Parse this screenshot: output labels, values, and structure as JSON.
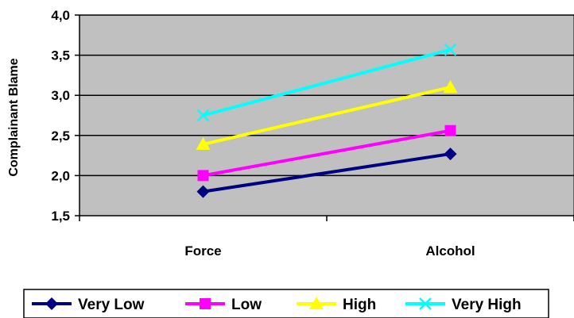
{
  "chart_data": {
    "type": "line",
    "categories": [
      "Force",
      "Alcohol"
    ],
    "ylabel": "Complainant Blame",
    "xlabel": "",
    "ylim": [
      1.5,
      4.0
    ],
    "yticks": [
      "1,5",
      "2,0",
      "2,5",
      "3,0",
      "3,5",
      "4,0"
    ],
    "grid": true,
    "legend_position": "bottom",
    "plot_background": "#c0c0c0",
    "series": [
      {
        "name": "Very Low",
        "values": [
          1.8,
          2.27
        ],
        "color": "#000080",
        "marker": "diamond"
      },
      {
        "name": "Low",
        "values": [
          2.0,
          2.56
        ],
        "color": "#ff00ff",
        "marker": "square"
      },
      {
        "name": "High",
        "values": [
          2.39,
          3.1
        ],
        "color": "#ffff00",
        "marker": "triangle"
      },
      {
        "name": "Very High",
        "values": [
          2.75,
          3.57
        ],
        "color": "#00ffff",
        "marker": "x"
      }
    ]
  }
}
